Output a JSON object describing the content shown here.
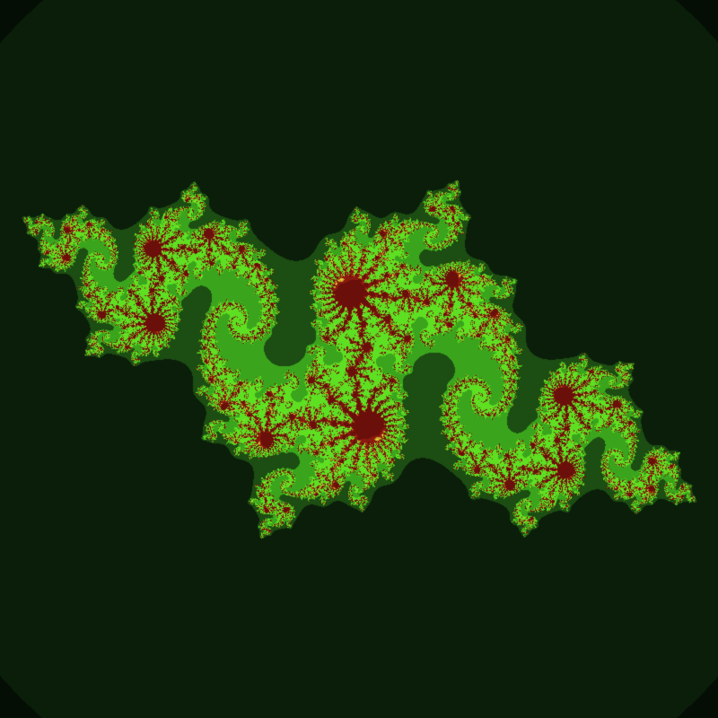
{
  "image": {
    "subject": "julia-set-fractal",
    "palette": {
      "background": "#050e05",
      "outer_band": "#0a1e0a",
      "mid_band": "#1c4d12",
      "inner_band": "#3aa51c",
      "bright_green": "#5ee022",
      "core_dark_red": "#6a0f0a",
      "core_red": "#8a1a10",
      "core_gold": "#c8a020",
      "core_yellow": "#e6d23a"
    }
  }
}
